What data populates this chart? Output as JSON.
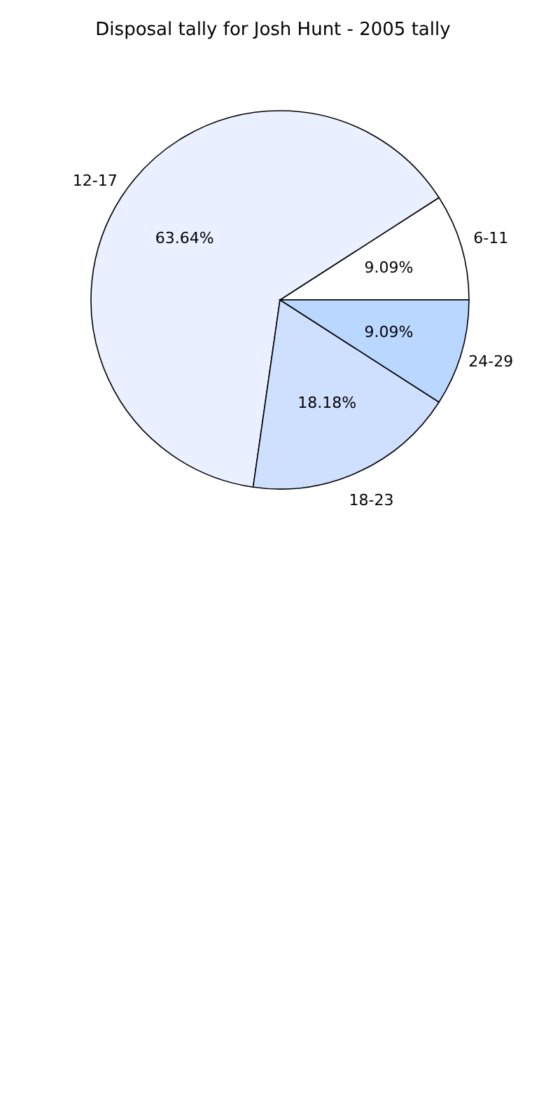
{
  "chart_data": {
    "type": "pie",
    "title": "Disposal tally for Josh Hunt - 2005 tally",
    "categories": [
      "6-11",
      "12-17",
      "18-23",
      "24-29"
    ],
    "values": [
      9.09,
      63.64,
      18.18,
      9.09
    ],
    "colors": [
      "#ffffff",
      "#eaf0ff",
      "#cfe0ff",
      "#b9d7ff"
    ],
    "value_labels": [
      "9.09%",
      "63.64%",
      "18.18%",
      "9.09%"
    ]
  }
}
